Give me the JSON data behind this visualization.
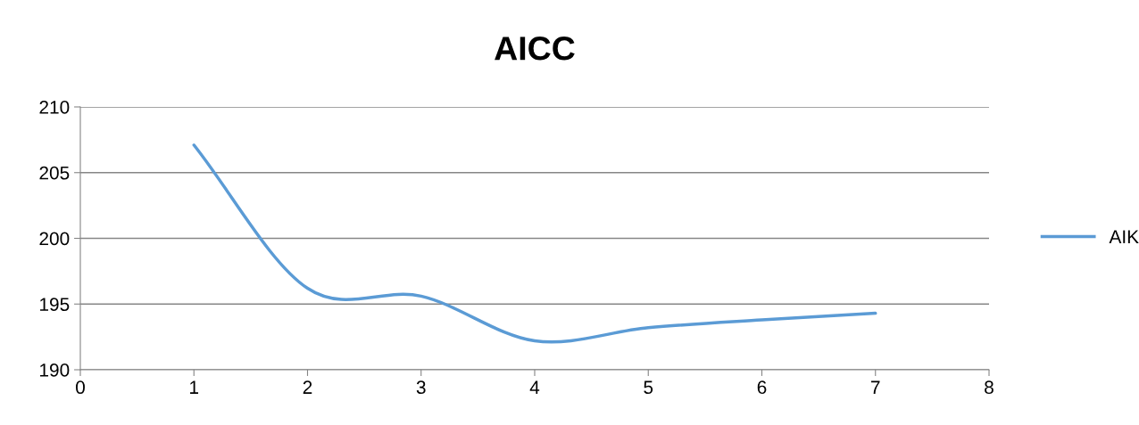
{
  "chart_data": {
    "type": "line",
    "title": "AICC",
    "x": [
      1,
      2,
      3,
      4,
      5,
      6,
      7
    ],
    "series": [
      {
        "name": "AIK",
        "color": "#5b9bd5",
        "values": [
          207.1,
          196.2,
          195.6,
          192.2,
          193.2,
          193.8,
          194.3
        ]
      }
    ],
    "xlim": [
      0,
      8
    ],
    "xticks": [
      0,
      1,
      2,
      3,
      4,
      5,
      6,
      7,
      8
    ],
    "ylim": [
      190,
      210
    ],
    "yticks": [
      190,
      195,
      200,
      205,
      210
    ],
    "grid": "y",
    "legend": "right",
    "marker": "none",
    "line_style": "solid"
  }
}
